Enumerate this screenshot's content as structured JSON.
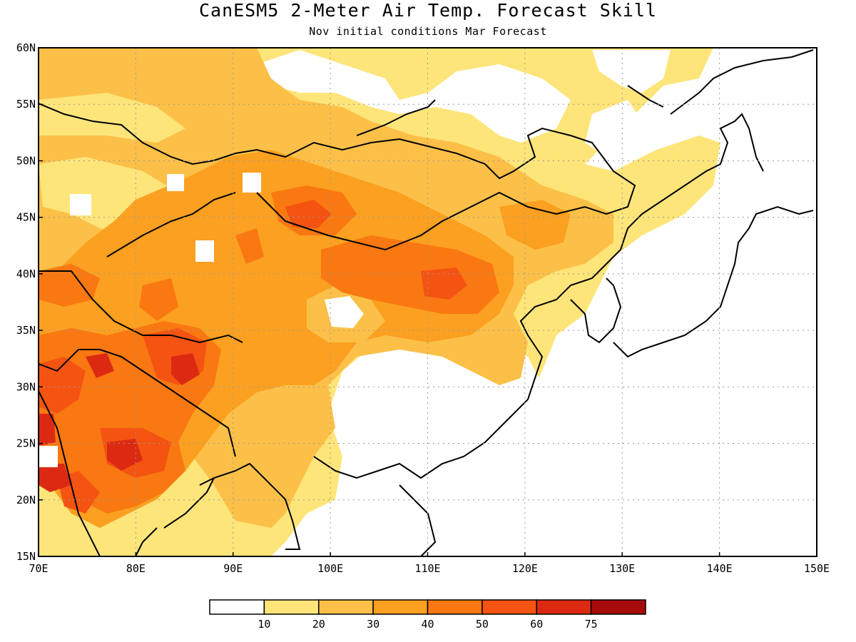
{
  "title": "CanESM5 2-Meter Air Temp. Forecast Skill",
  "subtitle": "Nov initial conditions  Mar Forecast",
  "axes": {
    "lon_ticks": [
      "70E",
      "80E",
      "90E",
      "100E",
      "110E",
      "120E",
      "130E",
      "140E",
      "150E"
    ],
    "lat_ticks": [
      "15N",
      "20N",
      "25N",
      "30N",
      "35N",
      "40N",
      "45N",
      "50N",
      "55N",
      "60N"
    ],
    "lon_range": [
      70,
      150
    ],
    "lat_range": [
      15,
      60
    ],
    "grid": "dotted"
  },
  "colorbar": {
    "colors": [
      "#ffffff",
      "#fee57a",
      "#fcc048",
      "#fba020",
      "#f97811",
      "#f45312",
      "#dc2a12",
      "#a80c0a"
    ],
    "labels": [
      "10",
      "20",
      "30",
      "40",
      "50",
      "60",
      "75"
    ]
  }
}
